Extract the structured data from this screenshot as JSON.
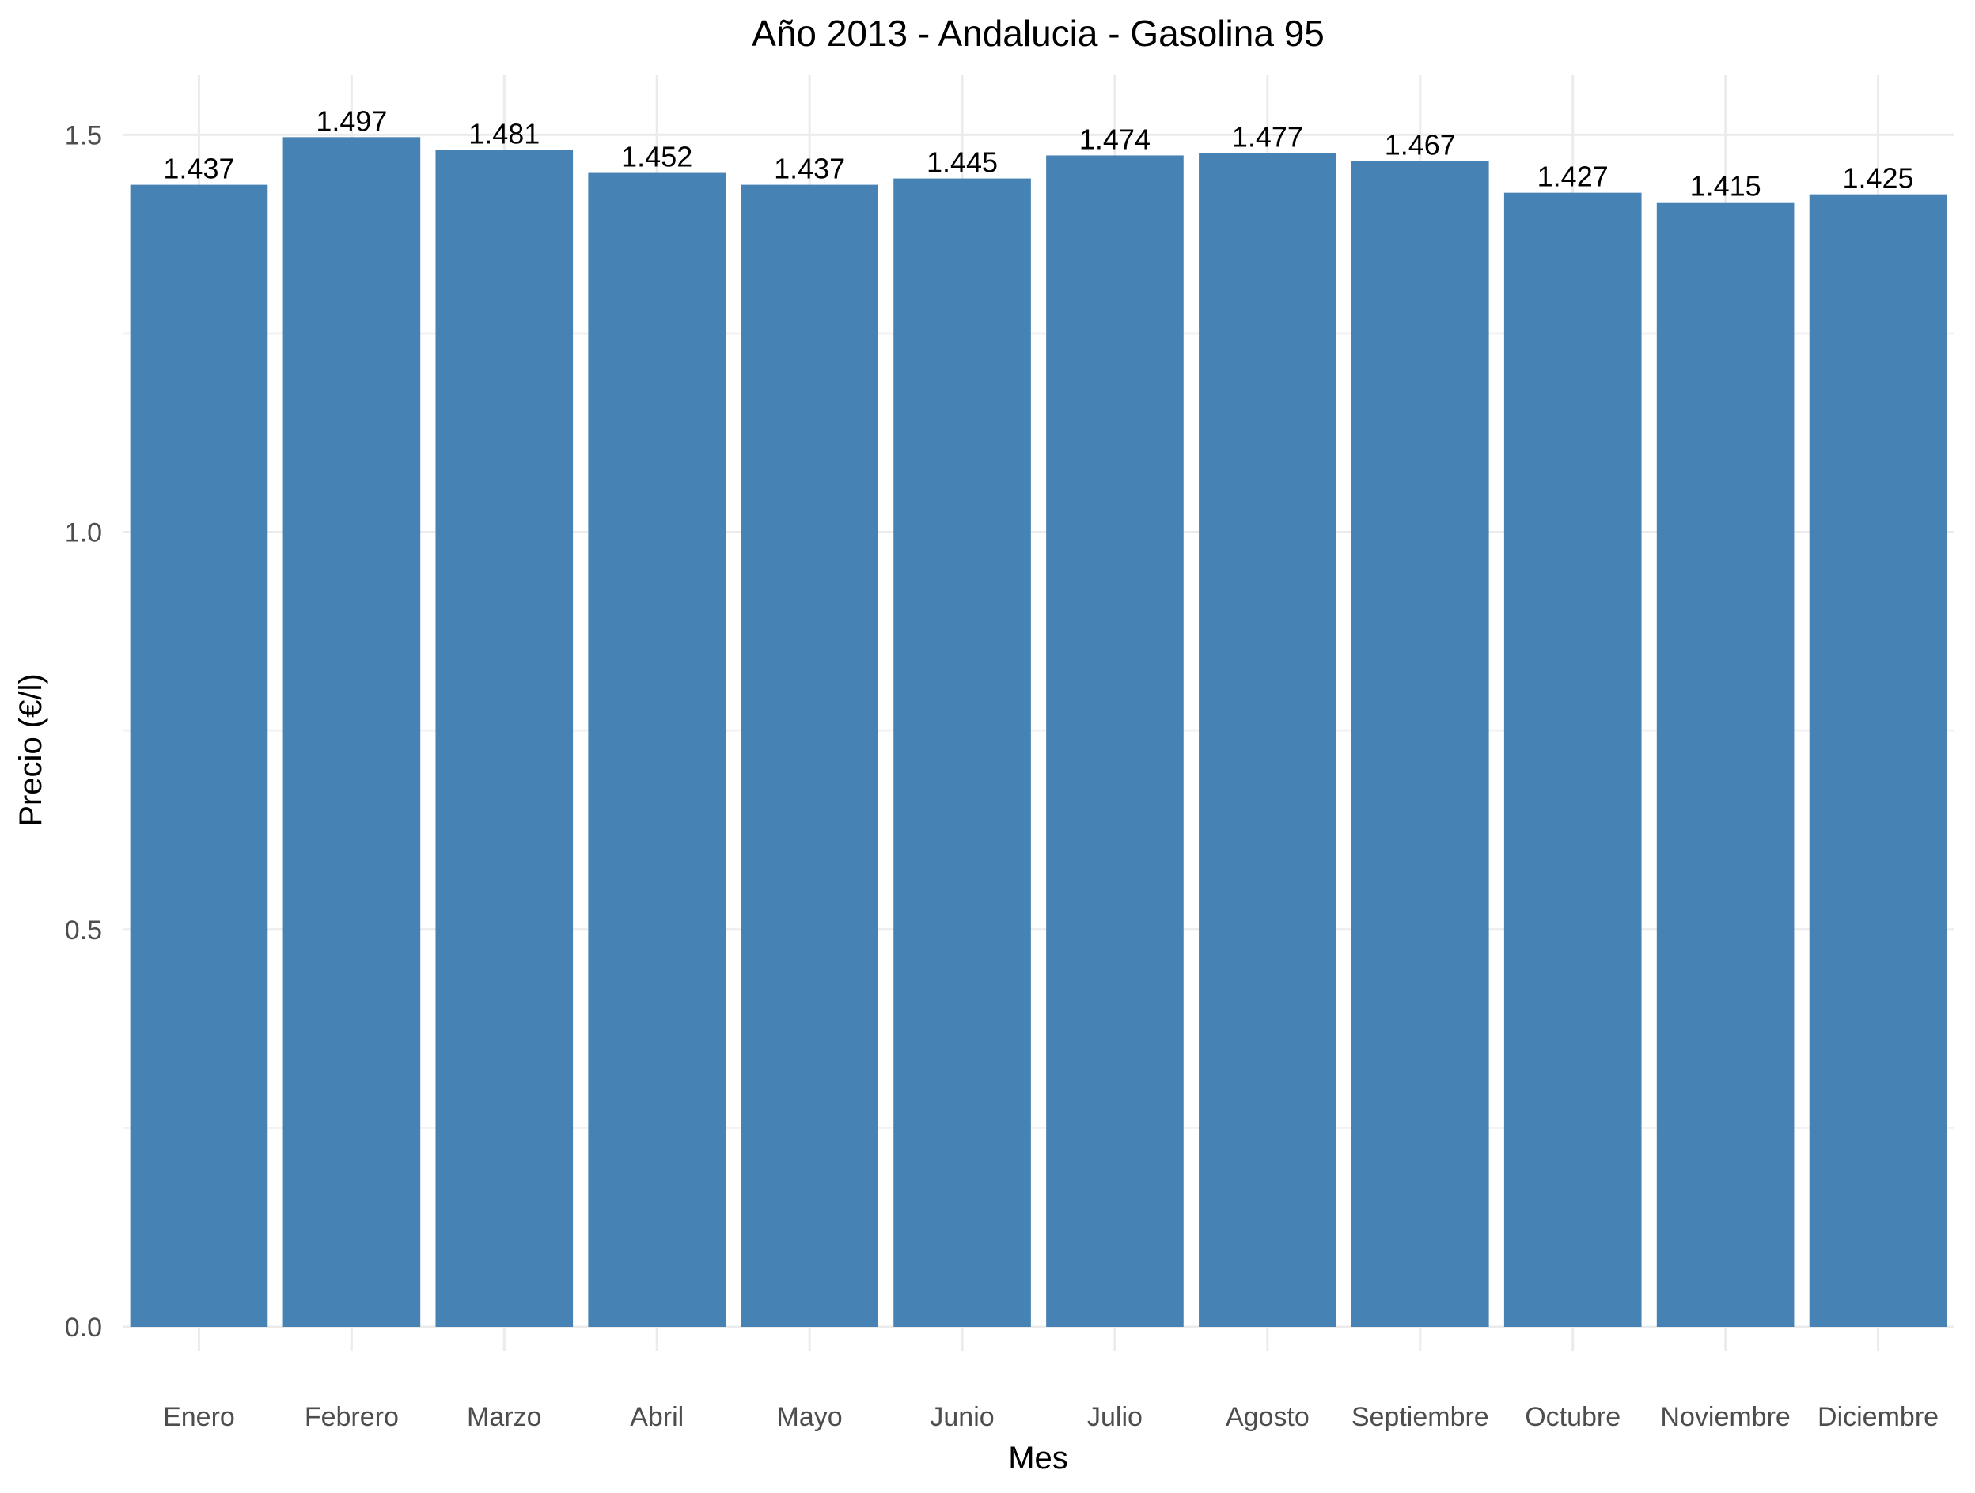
{
  "chart_data": {
    "type": "bar",
    "title": "Año 2013 - Andalucia - Gasolina 95",
    "xlabel": "Mes",
    "ylabel": "Precio (€/l)",
    "categories": [
      "Enero",
      "Febrero",
      "Marzo",
      "Abril",
      "Mayo",
      "Junio",
      "Julio",
      "Agosto",
      "Septiembre",
      "Octubre",
      "Noviembre",
      "Diciembre"
    ],
    "values": [
      1.437,
      1.497,
      1.481,
      1.452,
      1.437,
      1.445,
      1.474,
      1.477,
      1.467,
      1.427,
      1.415,
      1.425
    ],
    "data_labels": [
      "1.437",
      "1.497",
      "1.481",
      "1.452",
      "1.437",
      "1.445",
      "1.474",
      "1.477",
      "1.467",
      "1.427",
      "1.415",
      "1.425"
    ],
    "y_ticks": [
      0,
      0.5,
      1.0,
      1.5
    ],
    "y_tick_labels": [
      "0.0",
      "0.5",
      "1.0",
      "1.5"
    ],
    "ylim": [
      0,
      1.575
    ],
    "grid": true,
    "legend": "none",
    "bar_color": "#4682b4"
  }
}
